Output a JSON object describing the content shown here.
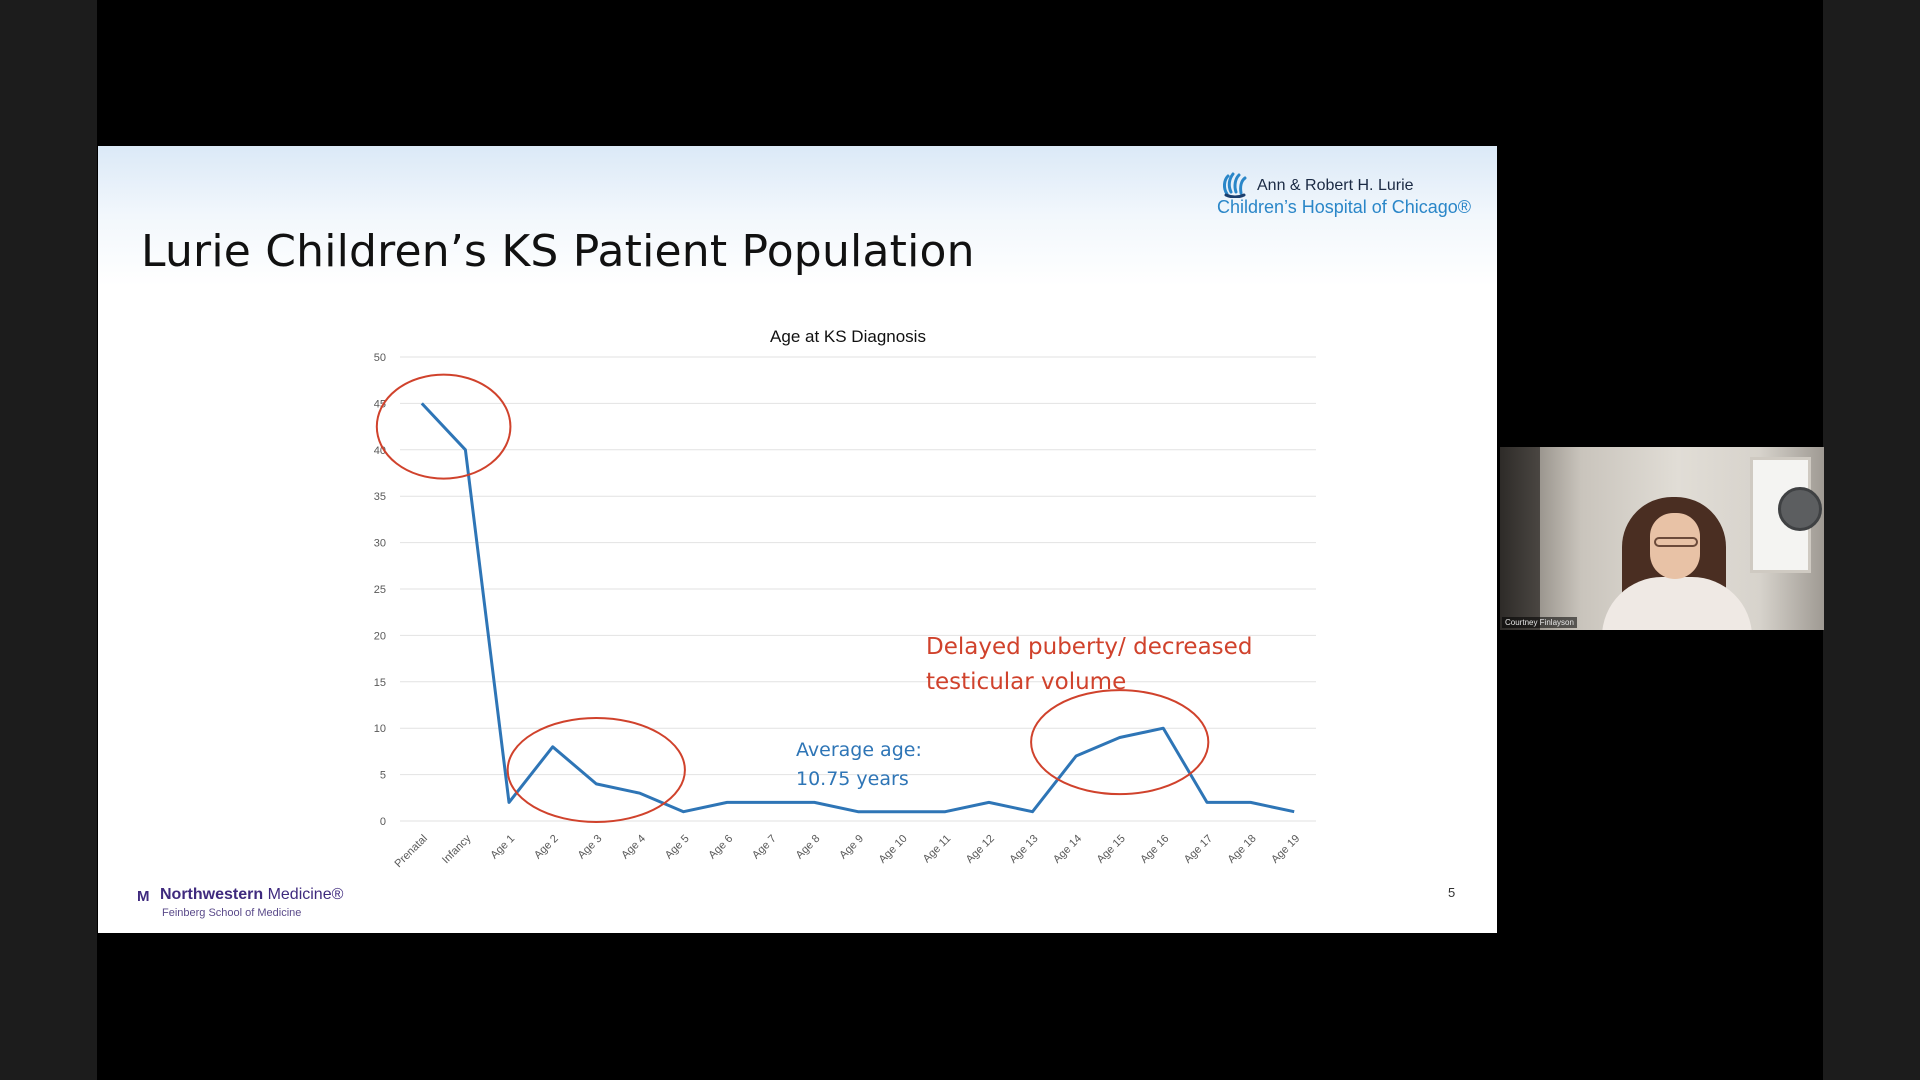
{
  "slide": {
    "title": "Lurie Children’s KS Patient Population",
    "page_number": "5",
    "logo_top_line1": "Ann & Robert H. Lurie",
    "logo_top_line2": "Children’s Hospital of Chicago®",
    "logo_bottom_mark": "M",
    "logo_bottom_name_bold": "Northwestern",
    "logo_bottom_name_rest": " Medicine®",
    "logo_bottom_sub": "Feinberg School of Medicine"
  },
  "video": {
    "participant_name": "Courtney Finlayson"
  },
  "colors": {
    "series_line": "#2e75b6",
    "annotation_red": "#d0422c",
    "annotation_blue": "#2e75b6",
    "gridline": "#e2e2e2",
    "tick_label": "#595959"
  },
  "chart_data": {
    "type": "line",
    "title": "Age at KS Diagnosis",
    "xlabel": "",
    "ylabel": "",
    "ylim": [
      0,
      50
    ],
    "yticks": [
      0,
      5,
      10,
      15,
      20,
      25,
      30,
      35,
      40,
      45,
      50
    ],
    "grid": true,
    "legend": "none",
    "categories": [
      "Prenatal",
      "Infancy",
      "Age 1",
      "Age 2",
      "Age 3",
      "Age 4",
      "Age 5",
      "Age 6",
      "Age 7",
      "Age 8",
      "Age 9",
      "Age 10",
      "Age 11",
      "Age 12",
      "Age 13",
      "Age 14",
      "Age 15",
      "Age 16",
      "Age 17",
      "Age 18",
      "Age 19"
    ],
    "series": [
      {
        "values": [
          45,
          40,
          2,
          8,
          4,
          3,
          1,
          2,
          2,
          2,
          1,
          1,
          1,
          2,
          1,
          7,
          9,
          10,
          2,
          2,
          1
        ]
      }
    ],
    "annotations": [
      {
        "text": "Delayed puberty/ decreased testicular volume",
        "color": "red"
      },
      {
        "text": "Average age: 10.75 years",
        "color": "blue"
      }
    ],
    "highlighted_regions": [
      [
        "Prenatal",
        "Infancy"
      ],
      [
        "Age 2",
        "Age 4"
      ],
      [
        "Age 14",
        "Age 16"
      ]
    ]
  }
}
